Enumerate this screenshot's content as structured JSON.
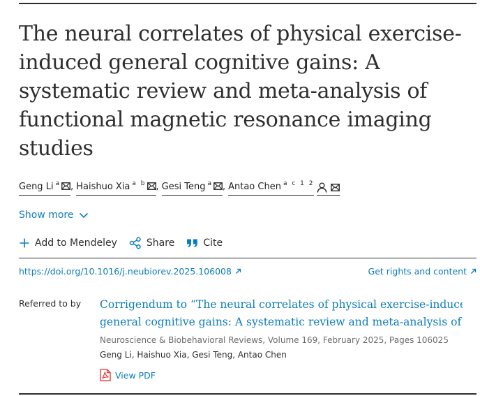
{
  "article": {
    "title_lines": [
      "The neural correlates of physical exercise-",
      "induced general cognitive gains: A",
      "systematic review and meta-analysis of",
      "functional magnetic resonance imaging",
      "studies"
    ],
    "authors": [
      {
        "name": "Geng Li",
        "affiliations": "a",
        "separator": ","
      },
      {
        "name": "Haishuo Xia",
        "affiliations": "a b",
        "separator": ","
      },
      {
        "name": "Gesi Teng",
        "affiliations": "a",
        "separator": ","
      },
      {
        "name": "Antao Chen",
        "affiliations": "a c 1 2",
        "separator": ""
      }
    ],
    "show_more_label": "Show more",
    "actions": {
      "mendeley_label": "Add to Mendeley",
      "share_label": "Share",
      "cite_label": "Cite"
    },
    "doi": "https://doi.org/10.1016/j.neubiorev.2025.106008",
    "rights_label": "Get rights and content"
  },
  "referred_to": {
    "label": "Referred to by",
    "title_lines": [
      "Corrigendum to “The neural correlates of physical exercise-induced",
      "general cognitive gains: A systematic review and meta-analysis of…"
    ],
    "journal": "Neuroscience & Biobehavioral Reviews, Volume 169, February 2025, Pages 106025",
    "authors": "Geng Li, Haishuo Xia, Gesi Teng, Antao Chen",
    "view_pdf_label": "View PDF"
  },
  "colors": {
    "link": "#0c7dbb",
    "text": "#2e2e2e",
    "muted": "#6b6b6b",
    "pdf_red": "#e0312b"
  },
  "icons": [
    "mail-icon",
    "person-icon",
    "chevron-down-icon",
    "plus-icon",
    "share-icon",
    "quote-icon",
    "external-arrow-icon",
    "pdf-icon"
  ]
}
